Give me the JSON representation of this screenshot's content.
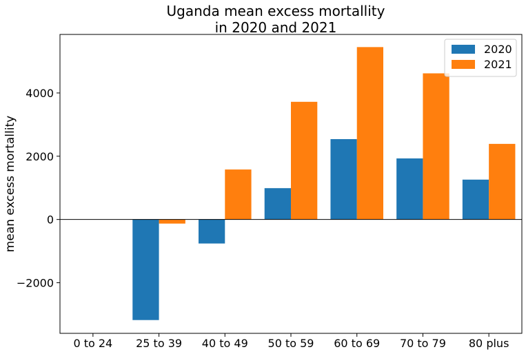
{
  "chart_data": {
    "type": "bar",
    "title": [
      "Uganda mean excess mortallity",
      "in 2020 and 2021"
    ],
    "xlabel": "",
    "ylabel": "mean excess mortallity",
    "categories": [
      "0 to 24",
      "25 to 39",
      "40 to 49",
      "50 to 59",
      "60 to 69",
      "70 to 79",
      "80 plus"
    ],
    "series": [
      {
        "name": "2020",
        "color": "#1f77b4",
        "values": [
          0,
          -3180,
          -760,
          990,
          2540,
          1930,
          1260
        ]
      },
      {
        "name": "2021",
        "color": "#ff7f0e",
        "values": [
          0,
          -130,
          1580,
          3720,
          5450,
          4620,
          2390
        ]
      }
    ],
    "ylim": [
      -3600,
      5850
    ],
    "yticks": [
      -2000,
      0,
      2000,
      4000
    ],
    "ytick_labels": [
      "−2000",
      "0",
      "2000",
      "4000"
    ],
    "zero_line": true,
    "grid": false,
    "legend_position": "top-right"
  }
}
